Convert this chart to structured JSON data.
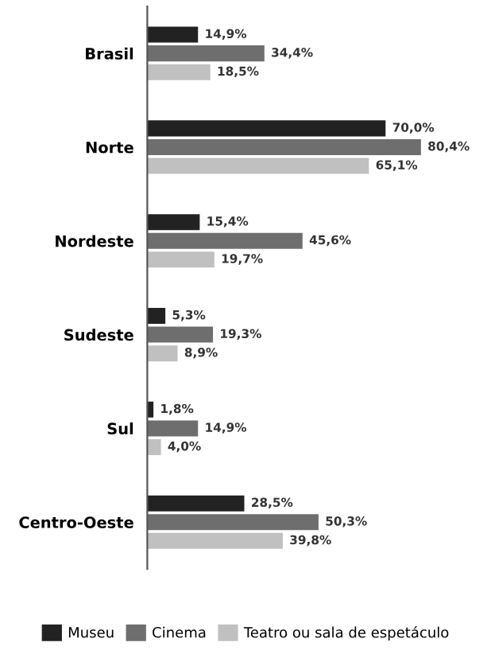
{
  "chart_data": {
    "type": "bar",
    "orientation": "horizontal",
    "categories": [
      "Brasil",
      "Norte",
      "Nordeste",
      "Sudeste",
      "Sul",
      "Centro-Oeste"
    ],
    "series": [
      {
        "name": "Museu",
        "color": "#222222",
        "values": [
          14.9,
          70.0,
          15.4,
          5.3,
          1.8,
          28.5
        ],
        "value_labels": [
          "14,9%",
          "70,0%",
          "15,4%",
          "5,3%",
          "1,8%",
          "28,5%"
        ]
      },
      {
        "name": "Cinema",
        "color": "#6e6e6e",
        "values": [
          34.4,
          80.4,
          45.6,
          19.3,
          14.9,
          50.3
        ],
        "value_labels": [
          "34,4%",
          "80,4%",
          "45,6%",
          "19,3%",
          "14,9%",
          "50,3%"
        ]
      },
      {
        "name": "Teatro ou sala de espetáculo",
        "color": "#c0c0c0",
        "values": [
          18.5,
          65.1,
          19.7,
          8.9,
          4.0,
          39.8
        ],
        "value_labels": [
          "18,5%",
          "65,1%",
          "19,7%",
          "8,9%",
          "4,0%",
          "39,8%"
        ]
      }
    ],
    "legend": "bottom",
    "grid": false
  }
}
